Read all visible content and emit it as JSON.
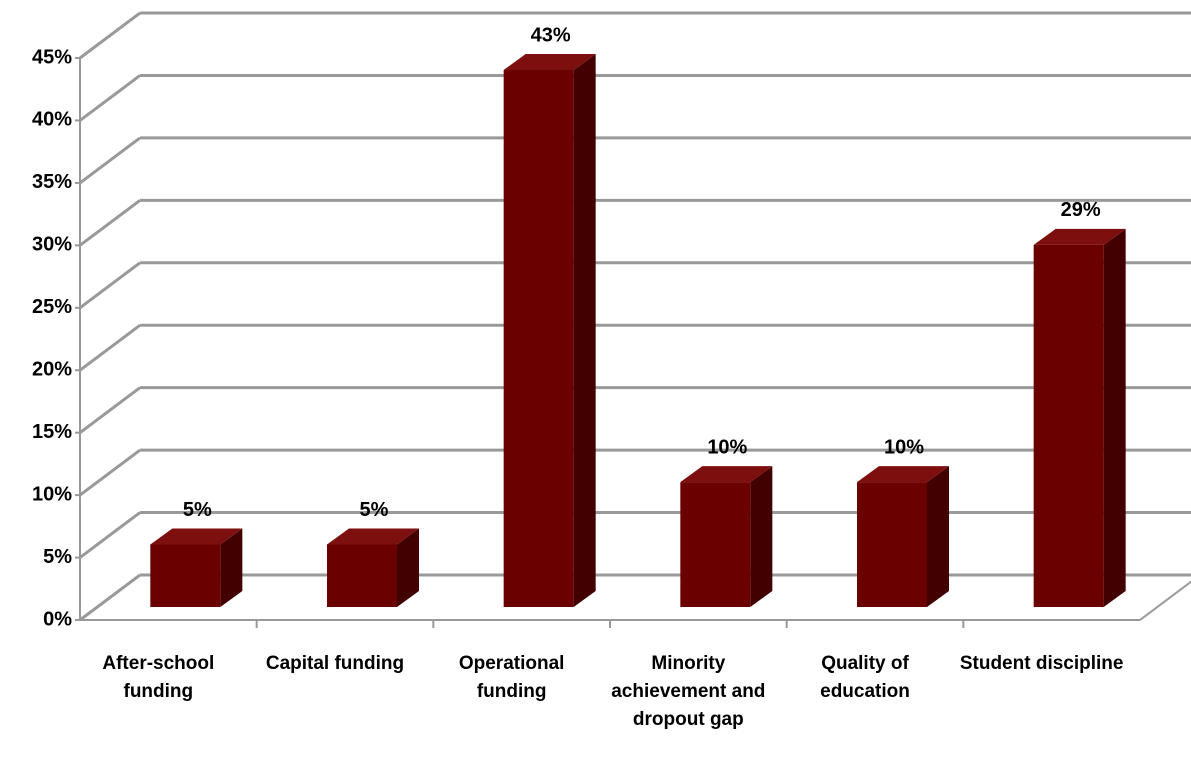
{
  "chart_data": {
    "type": "bar",
    "categories": [
      "After-school funding",
      "Capital funding",
      "Operational funding",
      "Minority achievement and dropout gap",
      "Quality of education",
      "Student discipline"
    ],
    "values": [
      5,
      5,
      43,
      10,
      10,
      29
    ],
    "value_labels": [
      "5%",
      "5%",
      "43%",
      "10%",
      "10%",
      "29%"
    ],
    "color": "#6b0000",
    "ylim": [
      0,
      45
    ],
    "yticks": [
      {
        "value": 0,
        "label": "0%"
      },
      {
        "value": 5,
        "label": "5%"
      },
      {
        "value": 10,
        "label": "10%"
      },
      {
        "value": 15,
        "label": "15%"
      },
      {
        "value": 20,
        "label": "20%"
      },
      {
        "value": 25,
        "label": "25%"
      },
      {
        "value": 30,
        "label": "30%"
      },
      {
        "value": 35,
        "label": "35%"
      },
      {
        "value": 40,
        "label": "40%"
      },
      {
        "value": 45,
        "label": "45%"
      }
    ],
    "grid": true
  }
}
